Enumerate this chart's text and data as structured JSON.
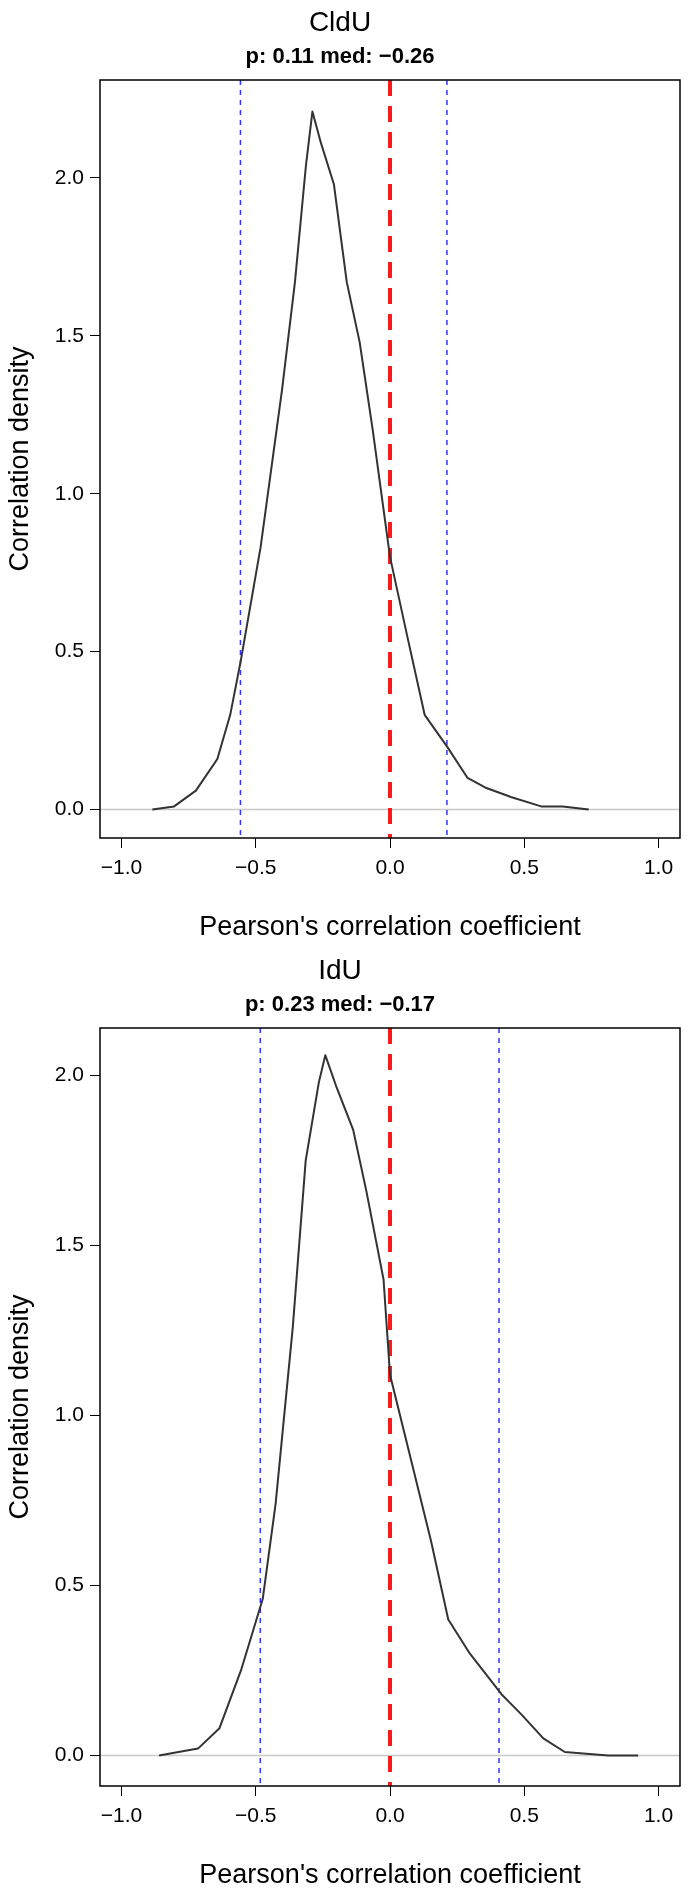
{
  "chart_data": [
    {
      "type": "line",
      "title": "CldU",
      "subtitle": "p: 0.11 med: −0.26",
      "xlabel": "Pearson's correlation coefficient",
      "ylabel": "Correlation density",
      "series": [
        {
          "color": "#333333",
          "x": [
            -0.885,
            -0.804,
            -0.723,
            -0.643,
            -0.595,
            -0.556,
            -0.482,
            -0.402,
            -0.354,
            -0.313,
            -0.289,
            -0.257,
            -0.209,
            -0.161,
            -0.113,
            -0.064,
            0.0,
            0.064,
            0.129,
            0.212,
            0.289,
            0.354,
            0.45,
            0.563,
            0.643,
            0.74
          ],
          "values": [
            0,
            0.01,
            0.06,
            0.16,
            0.3,
            0.47,
            0.83,
            1.33,
            1.67,
            2.04,
            2.21,
            2.11,
            1.98,
            1.67,
            1.48,
            1.2,
            0.8,
            0.55,
            0.3,
            0.2,
            0.1,
            0.07,
            0.04,
            0.01,
            0.01,
            0
          ]
        }
      ],
      "xlim": [
        -1.08,
        1.08
      ],
      "xticks": [
        {
          "value": -1,
          "label": "−1.0"
        },
        {
          "value": -0.5,
          "label": "−0.5"
        },
        {
          "value": 0,
          "label": "0.0"
        },
        {
          "value": 0.5,
          "label": "0.5"
        },
        {
          "value": 1,
          "label": "1.0"
        }
      ],
      "ylim": [
        -0.09,
        2.31
      ],
      "yticks": [
        {
          "value": 0,
          "label": "0.0"
        },
        {
          "value": 0.5,
          "label": "0.5"
        },
        {
          "value": 1,
          "label": "1.0"
        },
        {
          "value": 1.5,
          "label": "1.5"
        },
        {
          "value": 2,
          "label": "2.0"
        }
      ],
      "ref_lines": [
        {
          "axis": "y",
          "value": 0,
          "color": "#c8c8c8",
          "line_style": "solid"
        },
        {
          "axis": "x",
          "value": 0,
          "color": "#ff1a1a",
          "line_style": "dashed"
        },
        {
          "axis": "x",
          "value": -0.557,
          "color": "#3333ff",
          "line_style": "dotted"
        },
        {
          "axis": "x",
          "value": 0.212,
          "color": "#3333ff",
          "line_style": "dotted"
        }
      ],
      "grid": false,
      "legend": false,
      "marker": "none"
    },
    {
      "type": "line",
      "title": "IdU",
      "subtitle": "p: 0.23 med: −0.17",
      "xlabel": "Pearson's correlation coefficient",
      "ylabel": "Correlation density",
      "series": [
        {
          "color": "#333333",
          "x": [
            -0.86,
            -0.715,
            -0.635,
            -0.555,
            -0.474,
            -0.426,
            -0.362,
            -0.314,
            -0.265,
            -0.241,
            -0.201,
            -0.137,
            -0.088,
            -0.024,
            0.0,
            0.072,
            0.153,
            0.217,
            0.297,
            0.415,
            0.49,
            0.571,
            0.651,
            0.812,
            0.924
          ],
          "values": [
            0,
            0.02,
            0.08,
            0.25,
            0.46,
            0.74,
            1.26,
            1.75,
            1.98,
            2.06,
            1.97,
            1.84,
            1.66,
            1.4,
            1.12,
            0.89,
            0.63,
            0.4,
            0.3,
            0.18,
            0.12,
            0.05,
            0.01,
            0,
            0
          ]
        }
      ],
      "xlim": [
        -1.08,
        1.08
      ],
      "xticks": [
        {
          "value": -1,
          "label": "−1.0"
        },
        {
          "value": -0.5,
          "label": "−0.5"
        },
        {
          "value": 0,
          "label": "0.0"
        },
        {
          "value": 0.5,
          "label": "0.5"
        },
        {
          "value": 1,
          "label": "1.0"
        }
      ],
      "ylim": [
        -0.09,
        2.14
      ],
      "yticks": [
        {
          "value": 0,
          "label": "0.0"
        },
        {
          "value": 0.5,
          "label": "0.5"
        },
        {
          "value": 1,
          "label": "1.0"
        },
        {
          "value": 1.5,
          "label": "1.5"
        },
        {
          "value": 2,
          "label": "2.0"
        }
      ],
      "ref_lines": [
        {
          "axis": "y",
          "value": 0,
          "color": "#c8c8c8",
          "line_style": "solid"
        },
        {
          "axis": "x",
          "value": 0,
          "color": "#ff1a1a",
          "line_style": "dashed"
        },
        {
          "axis": "x",
          "value": -0.483,
          "color": "#3333ff",
          "line_style": "dotted"
        },
        {
          "axis": "x",
          "value": 0.406,
          "color": "#3333ff",
          "line_style": "dotted"
        }
      ],
      "grid": false,
      "legend": false,
      "marker": "none"
    }
  ]
}
